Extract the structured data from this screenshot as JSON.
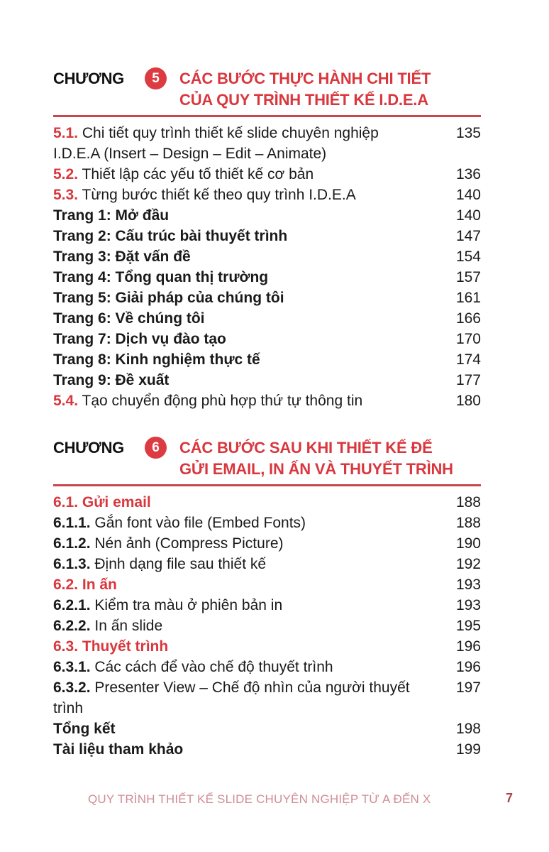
{
  "chapters": [
    {
      "word": "CHƯƠNG",
      "number": "5",
      "title_lines": [
        "CÁC BƯỚC THỰC HÀNH CHI TIẾT",
        "CỦA QUY TRÌNH THIẾT KẾ I.D.E.A"
      ],
      "entries": [
        {
          "prefix": "5.1.",
          "prefix_style": "red-bold",
          "text": "Chi tiết quy trình thiết kế slide chuyên nghiệp I.D.E.A (Insert – Design – Edit – Animate)",
          "text_bold": false,
          "page": "135"
        },
        {
          "prefix": "5.2.",
          "prefix_style": "red-bold",
          "text": "Thiết lập các yếu tố thiết kế cơ bản",
          "text_bold": false,
          "page": "136"
        },
        {
          "prefix": "5.3.",
          "prefix_style": "red-bold",
          "text": "Từng bước thiết kế theo quy trình I.D.E.A",
          "text_bold": false,
          "page": "140"
        },
        {
          "prefix": "",
          "prefix_style": "",
          "text": "Trang 1: Mở đầu",
          "text_bold": true,
          "page": "140"
        },
        {
          "prefix": "",
          "prefix_style": "",
          "text": "Trang 2: Cấu trúc bài thuyết trình",
          "text_bold": true,
          "page": "147"
        },
        {
          "prefix": "",
          "prefix_style": "",
          "text": "Trang 3: Đặt vấn đề",
          "text_bold": true,
          "page": "154"
        },
        {
          "prefix": "",
          "prefix_style": "",
          "text": "Trang 4: Tổng quan thị trường",
          "text_bold": true,
          "page": "157"
        },
        {
          "prefix": "",
          "prefix_style": "",
          "text": "Trang 5: Giải pháp của chúng tôi",
          "text_bold": true,
          "page": "161"
        },
        {
          "prefix": "",
          "prefix_style": "",
          "text": "Trang 6: Về chúng tôi",
          "text_bold": true,
          "page": "166"
        },
        {
          "prefix": "",
          "prefix_style": "",
          "text": "Trang 7: Dịch vụ đào tạo",
          "text_bold": true,
          "page": "170"
        },
        {
          "prefix": "",
          "prefix_style": "",
          "text": "Trang 8: Kinh nghiệm thực tế",
          "text_bold": true,
          "page": "174"
        },
        {
          "prefix": "",
          "prefix_style": "",
          "text": "Trang 9: Đề xuất",
          "text_bold": true,
          "page": "177"
        },
        {
          "prefix": "5.4.",
          "prefix_style": "red-bold",
          "text": "Tạo chuyển động phù hợp thứ tự thông tin",
          "text_bold": false,
          "page": "180"
        }
      ]
    },
    {
      "word": "CHƯƠNG",
      "number": "6",
      "title_lines": [
        "CÁC BƯỚC SAU KHI THIẾT KẾ ĐỂ",
        "GỬI EMAIL, IN ẤN VÀ THUYẾT TRÌNH"
      ],
      "entries": [
        {
          "prefix": "6.1. Gửi email",
          "prefix_style": "red-bold",
          "text": "",
          "text_bold": false,
          "page": "188"
        },
        {
          "prefix": "6.1.1.",
          "prefix_style": "bold",
          "text": "Gắn font vào file (Embed Fonts)",
          "text_bold": false,
          "page": "188"
        },
        {
          "prefix": "6.1.2.",
          "prefix_style": "bold",
          "text": "Nén ảnh (Compress Picture)",
          "text_bold": false,
          "page": "190"
        },
        {
          "prefix": "6.1.3.",
          "prefix_style": "bold",
          "text": "Định dạng file sau thiết kế",
          "text_bold": false,
          "page": "192"
        },
        {
          "prefix": "6.2. In ấn",
          "prefix_style": "red-bold",
          "text": "",
          "text_bold": false,
          "page": "193"
        },
        {
          "prefix": "6.2.1.",
          "prefix_style": "bold",
          "text": "Kiểm tra màu ở phiên bản in",
          "text_bold": false,
          "page": "193"
        },
        {
          "prefix": "6.2.2.",
          "prefix_style": "bold",
          "text": "In ấn slide",
          "text_bold": false,
          "page": "195"
        },
        {
          "prefix": "6.3. Thuyết trình",
          "prefix_style": "red-bold",
          "text": "",
          "text_bold": false,
          "page": "196"
        },
        {
          "prefix": "6.3.1.",
          "prefix_style": "bold",
          "text": "Các cách để vào chế độ thuyết trình",
          "text_bold": false,
          "page": "196"
        },
        {
          "prefix": "6.3.2.",
          "prefix_style": "bold",
          "text": "Presenter View – Chế độ nhìn của người thuyết trình",
          "text_bold": false,
          "page": "197"
        },
        {
          "prefix": "",
          "prefix_style": "",
          "text": "Tổng kết",
          "text_bold": true,
          "page": "198"
        },
        {
          "prefix": "",
          "prefix_style": "",
          "text": "Tài liệu tham khảo",
          "text_bold": true,
          "page": "199"
        }
      ]
    }
  ],
  "footer": {
    "running_title": "QUY TRÌNH THIẾT KẾ SLIDE CHUYÊN NGHIỆP TỪ A ĐẾN X",
    "page_number": "7"
  },
  "colors": {
    "accent_red": "#d9373e",
    "rule": "#c8464c",
    "footer_text": "#cf8d95",
    "page_number": "#a8454c"
  }
}
